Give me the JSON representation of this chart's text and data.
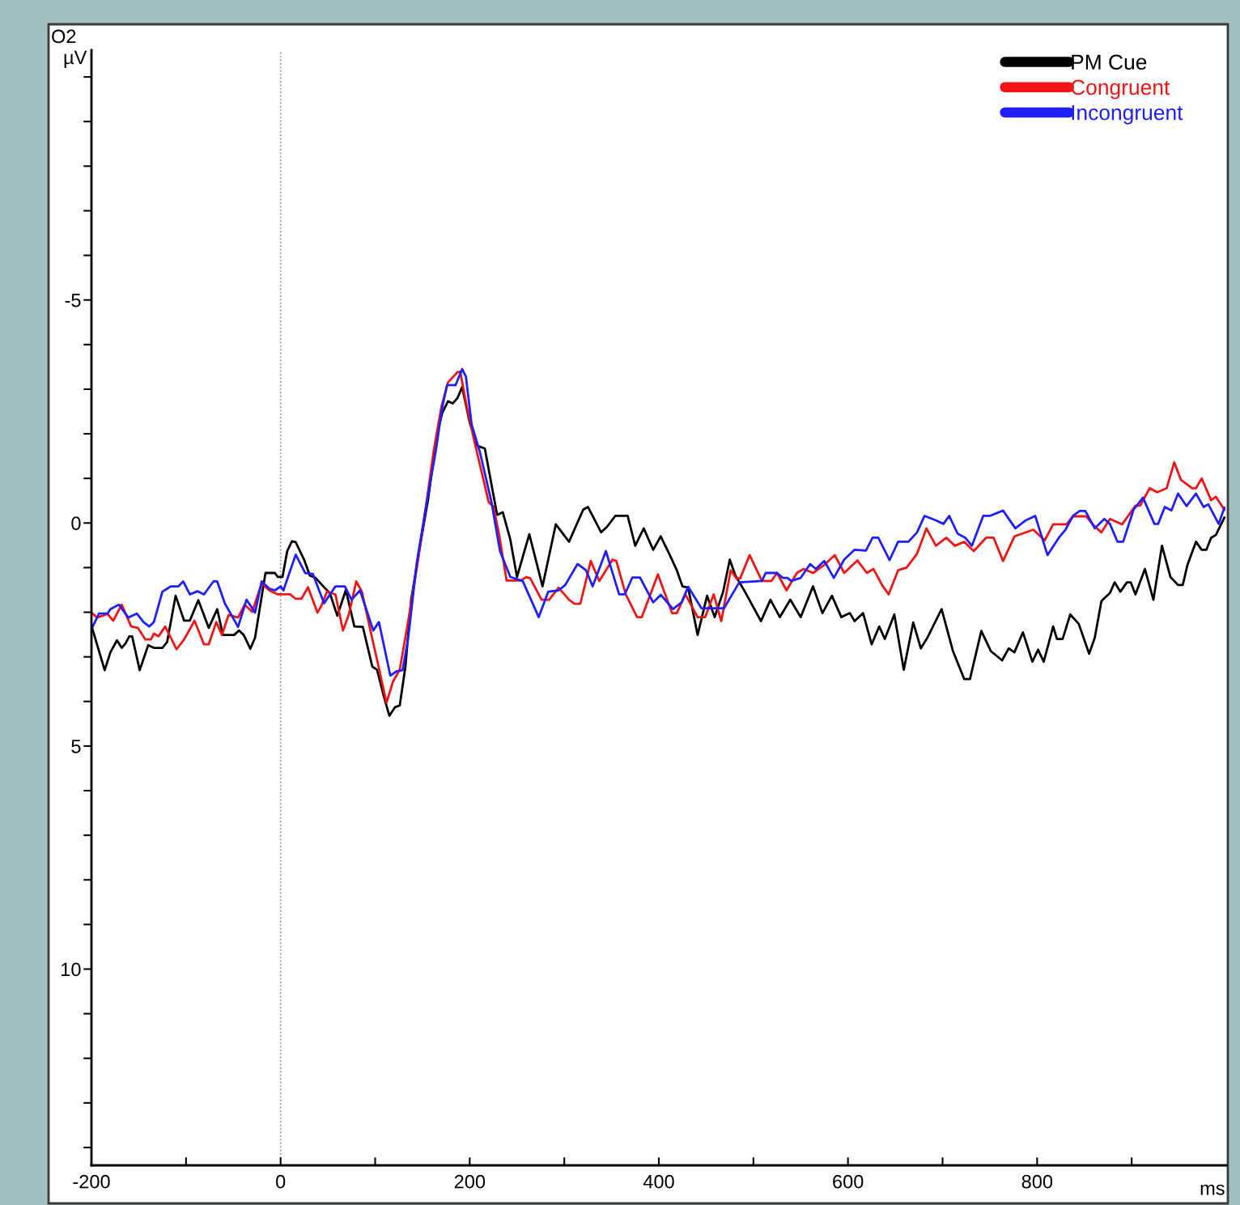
{
  "chart_data": {
    "type": "line",
    "title": "O2",
    "ylabel": "µV",
    "xlabel": "ms",
    "xlim": [
      -200,
      1000
    ],
    "ylim": [
      14.4,
      -10.6
    ],
    "xticks": [
      -200,
      {
        "value": -100,
        "label": null
      },
      0,
      {
        "value": 100,
        "label": null
      },
      200,
      {
        "value": 300,
        "label": null
      },
      400,
      {
        "value": 500,
        "label": null
      },
      600,
      {
        "value": 700,
        "label": null
      },
      800,
      {
        "value": 900,
        "label": null
      }
    ],
    "yticks": [
      {
        "value": -10,
        "label": null
      },
      {
        "value": -9,
        "label": null
      },
      {
        "value": -8,
        "label": null
      },
      {
        "value": -7,
        "label": null
      },
      {
        "value": -6,
        "label": null
      },
      -5,
      {
        "value": -4,
        "label": null
      },
      {
        "value": -3,
        "label": null
      },
      {
        "value": -2,
        "label": null
      },
      {
        "value": -1,
        "label": null
      },
      0,
      {
        "value": 1,
        "label": null
      },
      {
        "value": 2,
        "label": null
      },
      {
        "value": 3,
        "label": null
      },
      {
        "value": 4,
        "label": null
      },
      5,
      {
        "value": 6,
        "label": null
      },
      {
        "value": 7,
        "label": null
      },
      {
        "value": 8,
        "label": null
      },
      {
        "value": 9,
        "label": null
      },
      10,
      {
        "value": 11,
        "label": null
      },
      {
        "value": 12,
        "label": null
      },
      {
        "value": 13,
        "label": null
      },
      {
        "value": 14,
        "label": null
      }
    ],
    "ref_lines": [
      {
        "axis": "x",
        "value": 0,
        "color": "#888888",
        "line_style": "dotted"
      }
    ],
    "legend": "top right",
    "grid": false,
    "marker": "none",
    "line_style": "solid",
    "series": [
      {
        "name": "PM Cue",
        "color": "#000000",
        "x": [
          -200,
          -186,
          -180,
          -173,
          -168,
          -164,
          -160,
          -157,
          -149,
          -140,
          -134,
          -125,
          -120,
          -111,
          -102,
          -96,
          -87,
          -76,
          -67,
          -61,
          -49,
          -44,
          -39,
          -32,
          -27,
          -16,
          -6,
          -3,
          2,
          7,
          12,
          16,
          25,
          31,
          37,
          46,
          52,
          60,
          69,
          78,
          87,
          97,
          102,
          109,
          115,
          121,
          126,
          132,
          138,
          147,
          156,
          165,
          171,
          177,
          182,
          187,
          192,
          200,
          208,
          216,
          222,
          229,
          235,
          243,
          250,
          263,
          277,
          291,
          305,
          320,
          325,
          339,
          345,
          354,
          367,
          375,
          384,
          394,
          402,
          411,
          419,
          425,
          431,
          441,
          451,
          459,
          468,
          475,
          481,
          491,
          508,
          518,
          528,
          539,
          550,
          563,
          573,
          583,
          593,
          602,
          607,
          616,
          625,
          633,
          639,
          649,
          659,
          669,
          677,
          684,
          699,
          711,
          723,
          729,
          741,
          751,
          763,
          770,
          776,
          785,
          795,
          801,
          807,
          817,
          821,
          827,
          835,
          844,
          855,
          861,
          868,
          877,
          882,
          888,
          895,
          899,
          904,
          914,
          923,
          932,
          941,
          949,
          954,
          959,
          968,
          974,
          979,
          984,
          989,
          998
        ],
        "values": [
          2.3,
          3.3,
          2.9,
          2.63,
          2.8,
          2.7,
          2.54,
          2.54,
          3.3,
          2.74,
          2.8,
          2.8,
          2.67,
          1.63,
          2.19,
          2.19,
          1.73,
          2.35,
          1.93,
          2.51,
          2.51,
          2.41,
          2.51,
          2.82,
          2.57,
          1.12,
          1.12,
          1.21,
          1.21,
          0.63,
          0.41,
          0.43,
          0.83,
          1.18,
          1.23,
          1.44,
          1.57,
          2.08,
          1.5,
          2.32,
          2.33,
          3.22,
          3.29,
          3.87,
          4.32,
          4.13,
          4.09,
          3.22,
          1.73,
          0.57,
          -0.53,
          -1.96,
          -2.47,
          -2.73,
          -2.68,
          -2.8,
          -3.05,
          -2.25,
          -1.73,
          -1.67,
          -0.98,
          -0.18,
          -0.24,
          0.38,
          1.21,
          0.25,
          1.42,
          0.03,
          0.42,
          -0.3,
          -0.36,
          0.21,
          0.09,
          -0.16,
          -0.16,
          0.51,
          0.12,
          0.6,
          0.3,
          0.69,
          1.06,
          1.42,
          1.45,
          2.51,
          1.63,
          2.11,
          1.54,
          0.82,
          1.18,
          1.54,
          2.2,
          1.72,
          2.11,
          1.72,
          2.11,
          1.42,
          2.02,
          1.63,
          2.11,
          2.02,
          2.2,
          2.02,
          2.72,
          2.32,
          2.6,
          2.05,
          3.29,
          2.23,
          2.81,
          2.57,
          1.93,
          2.87,
          3.5,
          3.5,
          2.42,
          2.87,
          3.08,
          2.81,
          2.9,
          2.45,
          3.11,
          2.84,
          3.11,
          2.32,
          2.6,
          2.6,
          2.05,
          2.26,
          2.93,
          2.57,
          1.75,
          1.57,
          1.33,
          1.54,
          1.33,
          1.33,
          1.6,
          1.03,
          1.72,
          0.51,
          1.21,
          1.39,
          1.39,
          0.94,
          0.42,
          0.6,
          0.6,
          0.33,
          0.27,
          -0.12
        ]
      },
      {
        "name": "Congruent",
        "color": "#f01414",
        "x": [
          -200,
          -194,
          -183,
          -177,
          -168,
          -158,
          -151,
          -143,
          -137,
          -134,
          -129,
          -122,
          -110,
          -102,
          -91,
          -81,
          -76,
          -68,
          -62,
          -55,
          -45,
          -38,
          -30,
          -20,
          -12,
          -3,
          10,
          16,
          22,
          29,
          39,
          43,
          49,
          58,
          66,
          72,
          80,
          86,
          95,
          103,
          112,
          119,
          126,
          135,
          144,
          153,
          162,
          170,
          177,
          187,
          190,
          197,
          205,
          213,
          220,
          225,
          231,
          239,
          254,
          260,
          264,
          276,
          284,
          294,
          305,
          311,
          317,
          328,
          337,
          351,
          355,
          365,
          377,
          382,
          399,
          414,
          419,
          428,
          441,
          449,
          458,
          466,
          476,
          482,
          486,
          496,
          509,
          519,
          525,
          535,
          546,
          553,
          563,
          575,
          586,
          596,
          610,
          620,
          627,
          636,
          643,
          653,
          662,
          673,
          683,
          693,
          704,
          713,
          723,
          733,
          746,
          754,
          764,
          776,
          784,
          796,
          808,
          817,
          831,
          838,
          852,
          860,
          868,
          877,
          890,
          904,
          909,
          919,
          927,
          937,
          945,
          952,
          964,
          968,
          974,
          984,
          989,
          998
        ],
        "values": [
          2.01,
          2.12,
          2.04,
          2.19,
          1.83,
          2.32,
          2.35,
          2.61,
          2.61,
          2.48,
          2.54,
          2.32,
          2.83,
          2.61,
          2.19,
          2.72,
          2.72,
          2.22,
          2.51,
          2.06,
          2.12,
          1.83,
          1.99,
          1.35,
          1.51,
          1.6,
          1.6,
          1.7,
          1.7,
          1.44,
          2.01,
          1.86,
          1.54,
          1.6,
          2.41,
          2.06,
          1.31,
          1.54,
          2.41,
          3.16,
          4.03,
          3.55,
          3.29,
          2.19,
          1.02,
          -0.27,
          -1.63,
          -2.6,
          -3.15,
          -3.38,
          -3.39,
          -2.6,
          -1.82,
          -1.11,
          -0.47,
          -0.37,
          0.25,
          1.29,
          1.29,
          1.21,
          1.24,
          1.72,
          1.72,
          1.45,
          1.72,
          1.81,
          1.81,
          0.85,
          1.3,
          0.82,
          0.85,
          1.6,
          2.11,
          2.11,
          1.15,
          2.02,
          2.02,
          1.6,
          2.11,
          2.11,
          1.6,
          2.2,
          1.06,
          1.24,
          1.24,
          0.72,
          1.3,
          1.3,
          1.12,
          1.51,
          1.12,
          1.03,
          1.12,
          0.94,
          0.72,
          1.12,
          0.84,
          1.12,
          1.03,
          1.39,
          1.6,
          1.06,
          1.0,
          0.69,
          0.12,
          0.51,
          0.33,
          0.51,
          0.42,
          0.63,
          0.33,
          0.33,
          0.85,
          0.3,
          0.24,
          0.15,
          0.39,
          0.03,
          0.03,
          -0.15,
          -0.15,
          0.06,
          0.21,
          -0.09,
          0.03,
          -0.39,
          -0.39,
          -0.78,
          -0.69,
          -0.78,
          -1.36,
          -0.97,
          -0.78,
          -0.78,
          -1.0,
          -0.51,
          -0.59,
          -0.3
        ]
      },
      {
        "name": "Incongruent",
        "color": "#1e1eff",
        "x": [
          -200,
          -192,
          -183,
          -180,
          -171,
          -161,
          -152,
          -145,
          -139,
          -134,
          -125,
          -116,
          -108,
          -103,
          -96,
          -88,
          -81,
          -71,
          -67,
          -59,
          -52,
          -45,
          -36,
          -27,
          -20,
          -12,
          -6,
          0,
          3,
          16,
          26,
          34,
          46,
          58,
          68,
          75,
          84,
          98,
          104,
          116,
          123,
          129,
          135,
          144,
          153,
          164,
          171,
          176,
          185,
          192,
          196,
          202,
          211,
          223,
          232,
          243,
          256,
          273,
          283,
          294,
          301,
          314,
          323,
          330,
          344,
          358,
          364,
          372,
          380,
          394,
          402,
          415,
          424,
          431,
          445,
          469,
          485,
          509,
          513,
          525,
          531,
          536,
          540,
          550,
          560,
          566,
          575,
          585,
          596,
          607,
          619,
          626,
          632,
          644,
          653,
          664,
          673,
          681,
          693,
          701,
          707,
          716,
          724,
          731,
          743,
          750,
          764,
          777,
          788,
          798,
          811,
          823,
          830,
          838,
          845,
          851,
          861,
          871,
          877,
          885,
          891,
          902,
          912,
          924,
          928,
          935,
          942,
          949,
          958,
          968,
          976,
          981,
          992,
          998
        ],
        "values": [
          2.38,
          2.03,
          2.03,
          1.93,
          1.83,
          2.12,
          2.03,
          2.22,
          2.32,
          2.22,
          1.54,
          1.42,
          1.42,
          1.31,
          1.6,
          1.53,
          1.6,
          1.31,
          1.31,
          1.8,
          2.06,
          2.33,
          1.72,
          2.01,
          1.31,
          1.47,
          1.51,
          1.42,
          1.51,
          0.71,
          1.12,
          1.14,
          1.8,
          1.42,
          1.42,
          1.72,
          1.51,
          2.41,
          2.22,
          3.42,
          3.32,
          3.3,
          2.57,
          0.89,
          -0.27,
          -1.6,
          -2.6,
          -3.09,
          -3.09,
          -3.45,
          -3.28,
          -2.21,
          -1.57,
          -0.47,
          0.63,
          1.21,
          1.3,
          2.11,
          1.54,
          1.51,
          1.39,
          0.92,
          1.06,
          1.42,
          0.63,
          1.6,
          1.6,
          1.22,
          1.22,
          1.78,
          1.61,
          1.93,
          1.78,
          1.43,
          1.91,
          1.91,
          1.33,
          1.3,
          1.12,
          1.12,
          1.23,
          1.23,
          1.3,
          1.23,
          0.92,
          1.03,
          0.85,
          1.23,
          0.82,
          0.6,
          0.62,
          0.33,
          0.33,
          0.83,
          0.42,
          0.42,
          0.21,
          -0.16,
          -0.06,
          0.02,
          -0.16,
          0.24,
          0.33,
          0.51,
          -0.16,
          -0.16,
          -0.28,
          0.12,
          -0.06,
          -0.16,
          0.72,
          0.33,
          0.15,
          -0.16,
          -0.27,
          -0.27,
          0.12,
          -0.09,
          0.02,
          0.42,
          0.42,
          -0.3,
          -0.57,
          0.02,
          0.02,
          -0.36,
          -0.28,
          -0.66,
          -0.38,
          -0.66,
          -0.36,
          -0.42,
          0.02,
          -0.34
        ]
      }
    ]
  }
}
